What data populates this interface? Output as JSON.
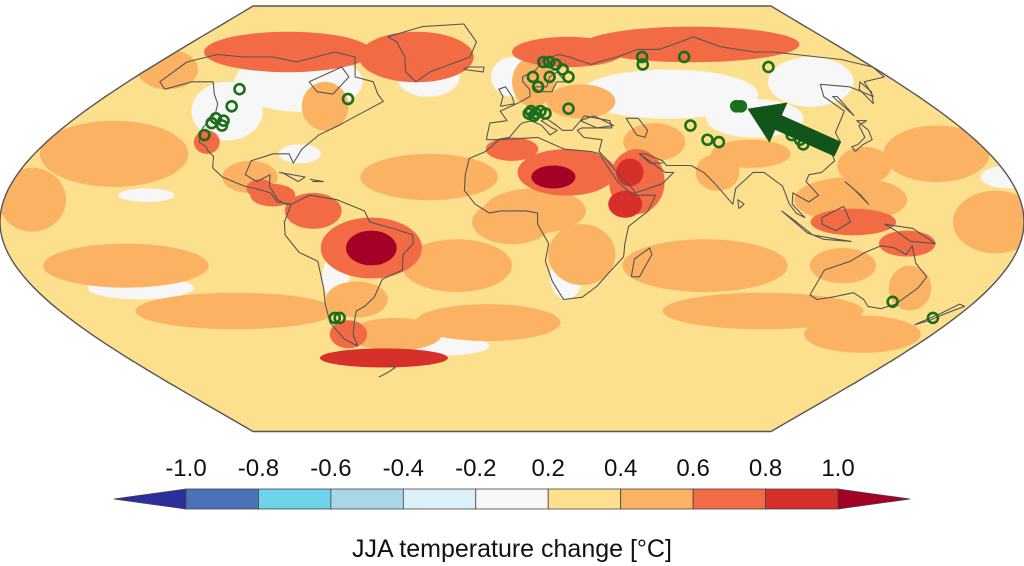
{
  "legend": {
    "title": "JJA temperature change [°C]",
    "tick_labels": [
      "-1.0",
      "-0.8",
      "-0.6",
      "-0.4",
      "-0.2",
      "0.2",
      "0.4",
      "0.6",
      "0.8",
      "1.0"
    ],
    "bins": [
      {
        "from": -1.0,
        "to": -0.8,
        "color": "#4a72b8"
      },
      {
        "from": -0.8,
        "to": -0.6,
        "color": "#6dd3e8"
      },
      {
        "from": -0.6,
        "to": -0.4,
        "color": "#a9d6e8"
      },
      {
        "from": -0.4,
        "to": -0.2,
        "color": "#dcf0f8"
      },
      {
        "from": -0.2,
        "to": 0.2,
        "color": "#f7f7f7"
      },
      {
        "from": 0.2,
        "to": 0.4,
        "color": "#fde08e"
      },
      {
        "from": 0.4,
        "to": 0.6,
        "color": "#fbb363"
      },
      {
        "from": 0.6,
        "to": 0.8,
        "color": "#f26b44"
      },
      {
        "from": 0.8,
        "to": 1.0,
        "color": "#d7302b"
      }
    ],
    "under_color": "#2b2f9e",
    "over_color": "#a50026"
  },
  "map": {
    "projection": "robinson-like",
    "background_fill": "#fde08e",
    "coastline_color": "#555555",
    "marker_color": "#1b6e1b",
    "arrow_color": "#11551a",
    "markers": [
      {
        "lon": -124,
        "lat": 57
      },
      {
        "lon": -120,
        "lat": 50
      },
      {
        "lon": -122,
        "lat": 45
      },
      {
        "lon": -122,
        "lat": 43
      },
      {
        "lon": -118,
        "lat": 44
      },
      {
        "lon": -117,
        "lat": 42
      },
      {
        "lon": -121,
        "lat": 38
      },
      {
        "lon": -72,
        "lat": 53
      },
      {
        "lon": 10,
        "lat": 62
      },
      {
        "lon": 16,
        "lat": 68
      },
      {
        "lon": 19,
        "lat": 68
      },
      {
        "lon": 22,
        "lat": 67
      },
      {
        "lon": 25,
        "lat": 65
      },
      {
        "lon": 27,
        "lat": 62
      },
      {
        "lon": 18,
        "lat": 62
      },
      {
        "lon": 12,
        "lat": 58
      },
      {
        "lon": 7,
        "lat": 47
      },
      {
        "lon": 8,
        "lat": 48
      },
      {
        "lon": 10,
        "lat": 47
      },
      {
        "lon": 12,
        "lat": 48
      },
      {
        "lon": 14,
        "lat": 47
      },
      {
        "lon": 9,
        "lat": 46
      },
      {
        "lon": 24,
        "lat": 49
      },
      {
        "lon": 66,
        "lat": 67
      },
      {
        "lon": 68,
        "lat": 70
      },
      {
        "lon": 90,
        "lat": 70
      },
      {
        "lon": 128,
        "lat": 66
      },
      {
        "lon": 72,
        "lat": 42
      },
      {
        "lon": 76,
        "lat": 36
      },
      {
        "lon": 80,
        "lat": 35
      },
      {
        "lon": 96,
        "lat": 50
      },
      {
        "lon": 98,
        "lat": 50
      },
      {
        "lon": 110,
        "lat": 38
      },
      {
        "lon": 112,
        "lat": 36
      },
      {
        "lon": 112,
        "lat": 34
      },
      {
        "lon": -72,
        "lat": -43
      },
      {
        "lon": -70,
        "lat": -43
      },
      {
        "lon": 148,
        "lat": -36
      },
      {
        "lon": 171,
        "lat": -43
      }
    ],
    "filled_markers": [
      {
        "lon": 97,
        "lat": 50
      }
    ],
    "arrow": {
      "from": {
        "lon": 124,
        "lat": 32
      },
      "to": {
        "lon": 100,
        "lat": 49
      }
    }
  }
}
